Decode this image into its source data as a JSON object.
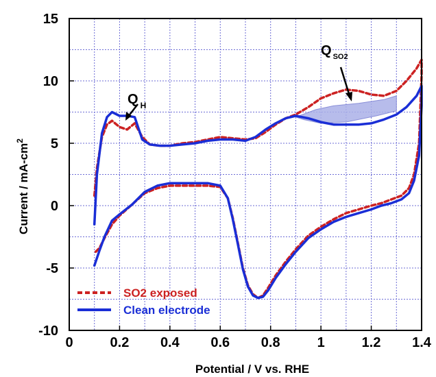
{
  "chart_data": {
    "type": "line",
    "xlabel": "Potential / V vs. RHE",
    "ylabel_main": "Current / mA-cm",
    "ylabel_sup": "2",
    "xlim": [
      0,
      1.4
    ],
    "ylim": [
      -10,
      15
    ],
    "x_ticks": [
      0,
      0.2,
      0.4,
      0.6,
      0.8,
      1,
      1.2,
      1.4
    ],
    "x_tick_labels": [
      "0",
      "0.2",
      "0.4",
      "0.6",
      "0.8",
      "1",
      "1.2",
      "1.4"
    ],
    "y_ticks": [
      -10,
      -5,
      0,
      5,
      10,
      15
    ],
    "y_tick_labels": [
      "-10",
      "-5",
      "0",
      "5",
      "10",
      "15"
    ],
    "grid": true,
    "legend_position": "bottom-left",
    "annotations": {
      "qh": {
        "main": "Q",
        "sub": "H"
      },
      "qso2": {
        "main": "Q",
        "sub": "SO2"
      }
    },
    "shaded_region": {
      "color": "#aab0e8",
      "points": [
        [
          0.9,
          7.1
        ],
        [
          0.98,
          7.7
        ],
        [
          1.05,
          8.0
        ],
        [
          1.15,
          8.2
        ],
        [
          1.25,
          8.5
        ],
        [
          1.3,
          8.8
        ],
        [
          1.3,
          7.6
        ],
        [
          1.22,
          7.2
        ],
        [
          1.1,
          6.7
        ],
        [
          1.0,
          6.6
        ],
        [
          0.93,
          6.9
        ]
      ]
    },
    "series": [
      {
        "name": "SO2 exposed",
        "color": "#cc2222",
        "dash": true,
        "x": [
          0.1,
          0.11,
          0.13,
          0.15,
          0.17,
          0.2,
          0.23,
          0.26,
          0.29,
          0.32,
          0.36,
          0.4,
          0.45,
          0.5,
          0.55,
          0.6,
          0.65,
          0.7,
          0.74,
          0.78,
          0.82,
          0.86,
          0.9,
          0.95,
          1.0,
          1.05,
          1.1,
          1.15,
          1.2,
          1.25,
          1.3,
          1.34,
          1.38,
          1.4,
          1.4,
          1.39,
          1.37,
          1.35,
          1.32,
          1.28,
          1.24,
          1.2,
          1.15,
          1.1,
          1.05,
          1.0,
          0.95,
          0.9,
          0.86,
          0.82,
          0.79,
          0.77,
          0.75,
          0.73,
          0.71,
          0.69,
          0.67,
          0.65,
          0.63,
          0.6,
          0.55,
          0.5,
          0.45,
          0.4,
          0.35,
          0.3,
          0.25,
          0.2,
          0.17,
          0.14,
          0.12,
          0.1
        ],
        "y": [
          0.8,
          3.0,
          5.5,
          6.5,
          6.8,
          6.3,
          6.1,
          6.6,
          5.5,
          4.9,
          4.8,
          4.8,
          5.0,
          5.1,
          5.3,
          5.5,
          5.4,
          5.3,
          5.4,
          5.9,
          6.5,
          7.0,
          7.3,
          7.9,
          8.6,
          9.0,
          9.3,
          9.2,
          8.9,
          8.8,
          9.2,
          10.0,
          11.0,
          11.7,
          10.5,
          5.0,
          2.5,
          1.4,
          0.8,
          0.5,
          0.2,
          0.0,
          -0.3,
          -0.6,
          -1.1,
          -1.7,
          -2.4,
          -3.5,
          -4.5,
          -5.6,
          -6.6,
          -7.2,
          -7.4,
          -7.1,
          -6.4,
          -5.0,
          -3.0,
          -1.0,
          0.6,
          1.5,
          1.6,
          1.6,
          1.6,
          1.6,
          1.4,
          1.0,
          0.1,
          -0.8,
          -1.5,
          -2.6,
          -3.4,
          -3.8
        ]
      },
      {
        "name": "Clean electrode",
        "color": "#1a2ed6",
        "dash": false,
        "x": [
          0.1,
          0.11,
          0.13,
          0.15,
          0.17,
          0.2,
          0.23,
          0.26,
          0.29,
          0.32,
          0.36,
          0.4,
          0.45,
          0.5,
          0.55,
          0.6,
          0.65,
          0.7,
          0.74,
          0.78,
          0.82,
          0.86,
          0.9,
          0.95,
          1.0,
          1.05,
          1.1,
          1.15,
          1.2,
          1.25,
          1.3,
          1.34,
          1.38,
          1.4,
          1.4,
          1.39,
          1.37,
          1.35,
          1.32,
          1.28,
          1.24,
          1.2,
          1.15,
          1.1,
          1.05,
          1.0,
          0.95,
          0.9,
          0.86,
          0.82,
          0.79,
          0.77,
          0.75,
          0.73,
          0.71,
          0.69,
          0.67,
          0.65,
          0.63,
          0.6,
          0.55,
          0.5,
          0.45,
          0.4,
          0.35,
          0.3,
          0.25,
          0.2,
          0.17,
          0.14,
          0.12,
          0.1
        ],
        "y": [
          -1.5,
          2.5,
          5.8,
          7.1,
          7.5,
          7.2,
          7.2,
          7.1,
          5.3,
          4.9,
          4.8,
          4.8,
          4.9,
          5.0,
          5.2,
          5.3,
          5.3,
          5.2,
          5.5,
          6.1,
          6.6,
          7.0,
          7.2,
          7.0,
          6.7,
          6.5,
          6.5,
          6.5,
          6.6,
          6.9,
          7.3,
          7.9,
          8.8,
          9.6,
          8.0,
          4.0,
          2.0,
          1.0,
          0.5,
          0.2,
          0.0,
          -0.3,
          -0.6,
          -0.9,
          -1.3,
          -1.9,
          -2.6,
          -3.7,
          -4.7,
          -5.8,
          -6.8,
          -7.3,
          -7.4,
          -7.2,
          -6.5,
          -5.1,
          -3.1,
          -1.1,
          0.6,
          1.6,
          1.8,
          1.8,
          1.8,
          1.8,
          1.6,
          1.1,
          0.1,
          -0.7,
          -1.2,
          -2.5,
          -3.6,
          -4.8
        ]
      }
    ]
  }
}
